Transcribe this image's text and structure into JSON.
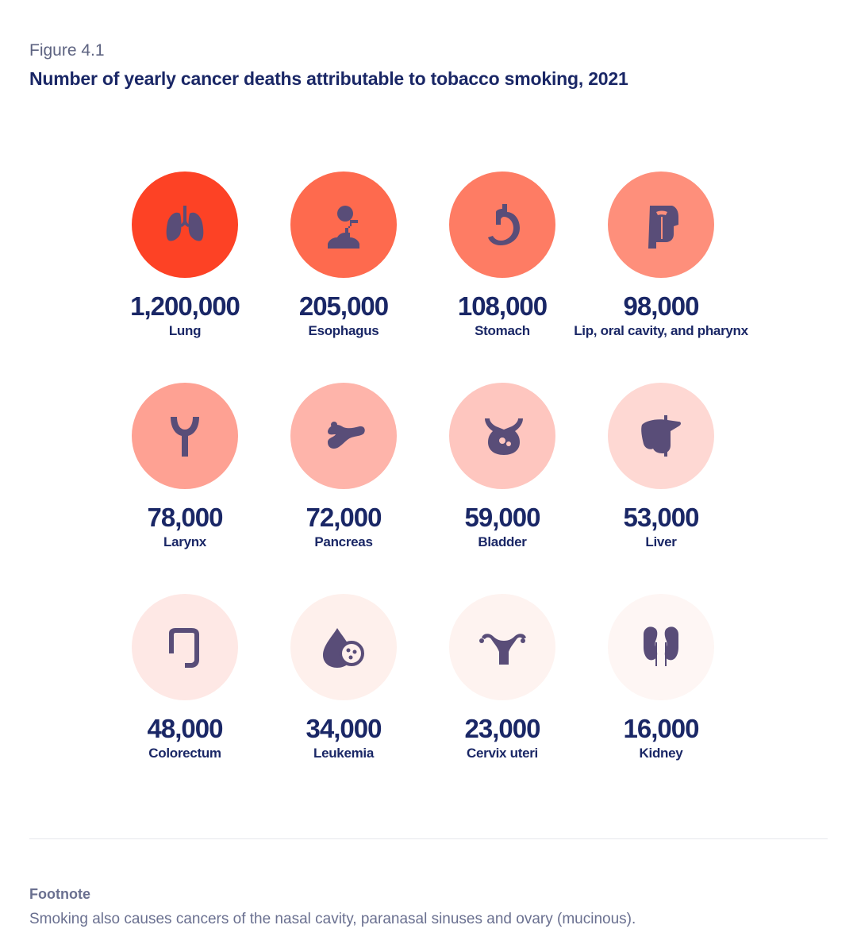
{
  "header": {
    "figure_label": "Figure 4.1",
    "title": "Number of yearly cancer deaths attributable to tobacco smoking, 2021"
  },
  "chart_data": {
    "type": "table",
    "title": "Number of yearly cancer deaths attributable to tobacco smoking, 2021",
    "categories": [
      "Lung",
      "Esophagus",
      "Stomach",
      "Lip, oral cavity, and pharynx",
      "Larynx",
      "Pancreas",
      "Bladder",
      "Liver",
      "Colorectum",
      "Leukemia",
      "Cervix uteri",
      "Kidney"
    ],
    "values": [
      1200000,
      205000,
      108000,
      98000,
      78000,
      72000,
      59000,
      53000,
      48000,
      34000,
      23000,
      16000
    ],
    "value_labels": [
      "1,200,000",
      "205,000",
      "108,000",
      "98,000",
      "78,000",
      "72,000",
      "59,000",
      "53,000",
      "48,000",
      "34,000",
      "23,000",
      "16,000"
    ],
    "icons": [
      "lungs-icon",
      "esophagus-icon",
      "stomach-icon",
      "oral-cavity-icon",
      "larynx-icon",
      "pancreas-icon",
      "bladder-icon",
      "liver-icon",
      "colon-icon",
      "blood-cell-icon",
      "uterus-icon",
      "kidney-icon"
    ],
    "colors": [
      "#fd4225",
      "#fe6a4e",
      "#fe7c64",
      "#fe8f7b",
      "#fea193",
      "#feb4aa",
      "#fec6bf",
      "#fed8d3",
      "#fee8e5",
      "#fef0ec",
      "#fef3f0",
      "#fef6f4"
    ]
  },
  "footnote": {
    "label": "Footnote",
    "text": "Smoking also causes cancers of the nasal cavity, paranasal sinuses and ovary (mucinous)."
  }
}
